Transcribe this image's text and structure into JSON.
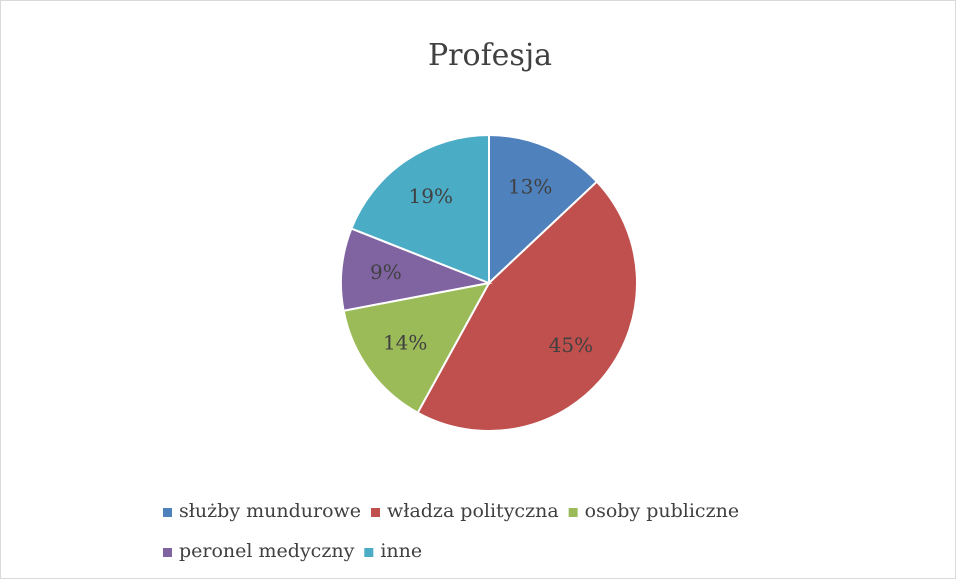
{
  "chart_data": {
    "type": "pie",
    "title": "Profesja",
    "categories": [
      "służby mundurowe",
      "władza polityczna",
      "osoby publiczne",
      "peronel medyczny",
      "inne"
    ],
    "values": [
      13,
      45,
      14,
      9,
      19
    ],
    "value_labels": [
      "13%",
      "45%",
      "14%",
      "9%",
      "19%"
    ],
    "colors": [
      "#4f81bd",
      "#c0504d",
      "#9bbb59",
      "#8064a2",
      "#4bacc6"
    ],
    "legend": "bottom"
  }
}
